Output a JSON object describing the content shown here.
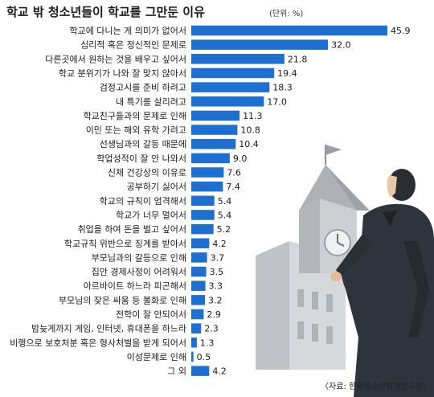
{
  "title": "학교 밖 청소년들이 학교를 그만둔 이유",
  "unit": "(단위: %)",
  "source": "〈자료: 한국청소년정책연구원〉",
  "colors": {
    "bar": "#1f6fd1",
    "text": "#1a1a1a"
  },
  "chart_data": {
    "type": "bar",
    "orientation": "horizontal",
    "title": "학교 밖 청소년들이 학교를 그만둔 이유",
    "unit": "%",
    "categories": [
      "학교에 다니는 게 의미가 없어서",
      "심리적 혹은 정신적인 문제로",
      "다른곳에서 원하는 것을 배우고 싶어서",
      "학교 분위기가 나와 잘 맞지 않아서",
      "검정고시를 준비 하려고",
      "내 특기를 살리려고",
      "학교친구들과의 문제로 인해",
      "이민 또는 해외 유학 가려고",
      "선생님과의 갈등 때문에",
      "학업성적이 잘 안 나와서",
      "신체 건강상의 이유로",
      "공부하기 싫어서",
      "학교의 규칙이 엄격해서",
      "학교가 너무 멀어서",
      "취업을 하여 돈을 벌고 싶어서",
      "학교규칙 위반으로 징계를 받아서",
      "부모님과의 갈등으로 인해",
      "집안 경제사정이 어려워서",
      "아르바이트 하느라 피곤해서",
      "부모님의 잦은 싸움 등 불화로 인해",
      "전학이 잘 안되어서",
      "밤늦게까지 게임, 인터넷, 휴대폰을 하느라",
      "비행으로 보호처분 혹은 형사처벌을 받게 되어서",
      "이성문제로 인해",
      "그 외"
    ],
    "values": [
      45.9,
      32.0,
      21.8,
      19.4,
      18.3,
      17.0,
      11.3,
      10.8,
      10.4,
      9.0,
      7.6,
      7.4,
      5.4,
      5.4,
      5.2,
      4.2,
      3.7,
      3.5,
      3.3,
      3.2,
      2.9,
      2.3,
      1.3,
      0.5,
      4.2
    ],
    "value_labels": [
      "45.9",
      "32.0",
      "21.8",
      "19.4",
      "18.3",
      "17.0",
      "11.3",
      "10.8",
      "10.4",
      "9.0",
      "7.6",
      "7.4",
      "5.4",
      "5.4",
      "5.2",
      "4.2",
      "3.7",
      "3.5",
      "3.3",
      "3.2",
      "2.9",
      "2.3",
      "1.3",
      "0.5",
      "4.2"
    ],
    "xlim": [
      0,
      50
    ],
    "grid": false,
    "legend": "none"
  }
}
